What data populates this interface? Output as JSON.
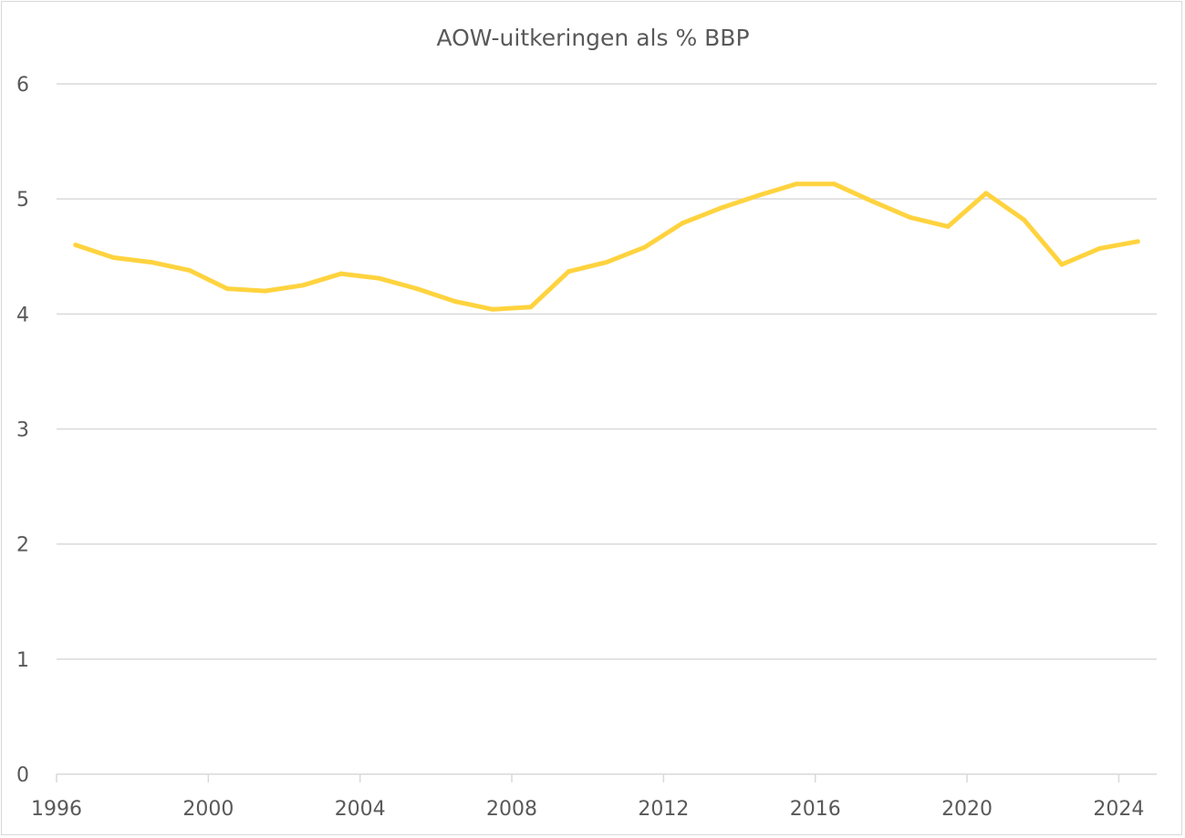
{
  "chart_data": {
    "type": "line",
    "title": "AOW-uitkeringen als % BBP",
    "xlabel": "",
    "ylabel": "",
    "ylim": [
      0,
      6
    ],
    "yticks": [
      "0",
      "1",
      "2",
      "3",
      "4",
      "5",
      "6"
    ],
    "xtick_labels": [
      "1996",
      "2000",
      "2004",
      "2008",
      "2012",
      "2016",
      "2020",
      "2024"
    ],
    "grid": true,
    "legend": "none",
    "colors": {
      "line": "#FFD33F",
      "grid": "#d9d9d9",
      "text": "#595959"
    },
    "x": [
      1996,
      1997,
      1998,
      1999,
      2000,
      2001,
      2002,
      2003,
      2004,
      2005,
      2006,
      2007,
      2008,
      2009,
      2010,
      2011,
      2012,
      2013,
      2014,
      2015,
      2016,
      2017,
      2018,
      2019,
      2020,
      2021,
      2022,
      2023,
      2024
    ],
    "series": [
      {
        "name": "AOW-uitkeringen als % BBP",
        "values": [
          4.6,
          4.49,
          4.45,
          4.38,
          4.22,
          4.2,
          4.25,
          4.35,
          4.31,
          4.22,
          4.11,
          4.04,
          4.06,
          4.37,
          4.45,
          4.58,
          4.79,
          4.92,
          5.03,
          5.13,
          5.13,
          4.98,
          4.84,
          4.76,
          5.05,
          4.82,
          4.43,
          4.57,
          4.63
        ]
      }
    ]
  }
}
